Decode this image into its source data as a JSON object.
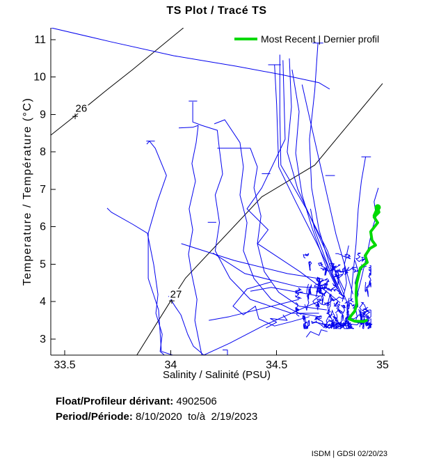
{
  "footer": {
    "float_label": "Float/Profileur dérivant:",
    "float_value": " 4902506",
    "period_label": "Period/Période:",
    "period_value": " 8/10/2020  to/à  2/19/2023",
    "credit": "ISDM | GDSI 02/20/23"
  },
  "chart_data": {
    "type": "line",
    "title": "TS Plot / Tracé TS",
    "xlabel": "Salinity / Salinité (PSU)",
    "ylabel": "Temperature / Température (°C)",
    "xlim": [
      33.434,
      35.0
    ],
    "ylim": [
      2.572,
      11.316
    ],
    "grid": false,
    "xticks": [
      {
        "v": 33.5,
        "label": "33.5"
      },
      {
        "v": 34.0,
        "label": "34"
      },
      {
        "v": 34.5,
        "label": "34.5"
      },
      {
        "v": 35.0,
        "label": "35"
      }
    ],
    "yticks": [
      {
        "v": 3,
        "label": "3"
      },
      {
        "v": 4,
        "label": "4"
      },
      {
        "v": 5,
        "label": "5"
      },
      {
        "v": 6,
        "label": "6"
      },
      {
        "v": 7,
        "label": "7"
      },
      {
        "v": 8,
        "label": "8"
      },
      {
        "v": 9,
        "label": "9"
      },
      {
        "v": 10,
        "label": "10"
      },
      {
        "v": 11,
        "label": "11"
      }
    ],
    "legend": {
      "label": "Most Recent | Dernier profil",
      "color": "#00D900",
      "position": "top-right"
    },
    "axis_color": "#000000",
    "density_contours": [
      {
        "label": "26",
        "color": "#000000",
        "marker": [
          33.549,
          8.95
        ],
        "label_pos": [
          33.578,
          9.17
        ],
        "points": [
          [
            33.434,
            8.45
          ],
          [
            33.55,
            8.97
          ],
          [
            33.69,
            9.62
          ],
          [
            33.82,
            10.2
          ],
          [
            34.06,
            11.316
          ]
        ]
      },
      {
        "label": "27",
        "color": "#000000",
        "marker": [
          34.005,
          4.02
        ],
        "label_pos": [
          34.025,
          4.2
        ],
        "points": [
          [
            33.84,
            2.572
          ],
          [
            34.0,
            4.02
          ],
          [
            34.07,
            4.63
          ],
          [
            34.43,
            6.8
          ],
          [
            34.68,
            7.65
          ],
          [
            34.79,
            8.4
          ],
          [
            35.0,
            9.83
          ]
        ]
      }
    ],
    "profiles": {
      "color": "#0000EE",
      "series": [
        [
          [
            33.434,
            11.32
          ],
          [
            33.72,
            10.94
          ],
          [
            34.015,
            10.57
          ],
          [
            34.31,
            10.29
          ],
          [
            34.52,
            10.07
          ],
          [
            34.7,
            9.85
          ],
          [
            34.75,
            9.68
          ]
        ],
        [
          [
            34.515,
            10.6
          ],
          [
            34.515,
            9.0
          ],
          [
            34.52,
            7.65
          ],
          [
            34.64,
            6.48
          ],
          [
            34.74,
            5.36
          ],
          [
            34.8,
            4.43
          ],
          [
            34.84,
            3.87
          ]
        ],
        [
          [
            34.49,
            10.33
          ],
          [
            34.5,
            9.27
          ],
          [
            34.51,
            7.6
          ],
          [
            34.59,
            6.67
          ],
          [
            34.69,
            5.55
          ],
          [
            34.77,
            4.62
          ],
          [
            34.82,
            4.06
          ]
        ],
        [
          [
            34.53,
            10.45
          ],
          [
            34.54,
            8.34
          ],
          [
            34.43,
            7.04
          ],
          [
            34.36,
            6.48
          ],
          [
            34.46,
            5.92
          ],
          [
            34.41,
            5.55
          ],
          [
            34.61,
            4.8
          ],
          [
            34.74,
            4.25
          ],
          [
            34.8,
            3.97
          ]
        ],
        [
          [
            34.695,
            10.91
          ],
          [
            34.68,
            9.64
          ],
          [
            34.655,
            8.34
          ],
          [
            34.665,
            7.04
          ],
          [
            34.7,
            5.92
          ],
          [
            34.76,
            4.8
          ],
          [
            34.81,
            4.15
          ]
        ],
        [
          [
            34.92,
            7.87
          ],
          [
            34.9,
            7.22
          ],
          [
            34.885,
            6.48
          ],
          [
            34.875,
            5.55
          ],
          [
            34.86,
            4.71
          ],
          [
            34.85,
            4.06
          ]
        ],
        [
          [
            34.98,
            7.04
          ],
          [
            34.96,
            6.67
          ],
          [
            34.97,
            6.29
          ],
          [
            34.95,
            5.92
          ],
          [
            34.93,
            5.36
          ],
          [
            34.9,
            4.62
          ],
          [
            34.875,
            4.06
          ]
        ],
        [
          [
            33.7,
            6.5
          ],
          [
            33.72,
            6.39
          ],
          [
            33.82,
            6.07
          ],
          [
            33.89,
            5.83
          ],
          [
            33.92,
            4.99
          ],
          [
            33.94,
            4.19
          ],
          [
            33.93,
            3.69
          ],
          [
            33.96,
            3.13
          ],
          [
            33.95,
            2.67
          ],
          [
            33.97,
            2.572
          ]
        ],
        [
          [
            33.887,
            8.21
          ],
          [
            33.9,
            8.29
          ],
          [
            33.927,
            8.1
          ],
          [
            33.98,
            7.37
          ],
          [
            33.937,
            6.67
          ],
          [
            33.894,
            5.83
          ],
          [
            33.894,
            4.62
          ],
          [
            33.943,
            3.78
          ],
          [
            33.956,
            2.67
          ],
          [
            34.01,
            2.572
          ]
        ],
        [
          [
            34.038,
            8.64
          ],
          [
            34.104,
            8.66
          ],
          [
            34.13,
            8.71
          ],
          [
            34.12,
            8.25
          ],
          [
            34.1,
            7.69
          ],
          [
            34.117,
            7.22
          ],
          [
            34.087,
            6.48
          ],
          [
            34.104,
            5.92
          ],
          [
            34.084,
            5.27
          ],
          [
            34.1,
            4.71
          ],
          [
            34.124,
            4.06
          ],
          [
            34.114,
            3.5
          ],
          [
            34.137,
            2.85
          ],
          [
            34.147,
            2.572
          ]
        ],
        [
          [
            34.104,
            9.34
          ],
          [
            34.104,
            8.8
          ],
          [
            34.147,
            8.71
          ],
          [
            34.22,
            8.58
          ],
          [
            34.23,
            8.06
          ],
          [
            34.245,
            7.41
          ],
          [
            34.21,
            6.85
          ],
          [
            34.23,
            6.11
          ],
          [
            34.21,
            5.36
          ],
          [
            34.28,
            4.62
          ],
          [
            34.376,
            4.06
          ],
          [
            34.57,
            3.69
          ],
          [
            34.7,
            3.69
          ]
        ],
        [
          [
            34.22,
            8.1
          ],
          [
            34.376,
            8.1
          ],
          [
            34.409,
            7.6
          ],
          [
            34.393,
            7.04
          ],
          [
            34.426,
            6.29
          ],
          [
            34.409,
            5.55
          ],
          [
            34.442,
            4.8
          ],
          [
            34.51,
            4.25
          ],
          [
            34.606,
            3.88
          ],
          [
            34.737,
            3.78
          ]
        ],
        [
          [
            34.206,
            8.75
          ],
          [
            34.255,
            8.86
          ],
          [
            34.327,
            8.25
          ],
          [
            34.343,
            7.6
          ],
          [
            34.327,
            6.85
          ],
          [
            34.36,
            6.11
          ],
          [
            34.343,
            5.36
          ],
          [
            34.393,
            4.62
          ],
          [
            34.475,
            4.06
          ],
          [
            34.606,
            3.69
          ],
          [
            34.7,
            3.6
          ]
        ],
        [
          [
            33.99,
            4.15
          ],
          [
            34.02,
            3.88
          ],
          [
            34.048,
            3.65
          ],
          [
            34.08,
            3.13
          ],
          [
            34.107,
            2.81
          ],
          [
            34.137,
            2.67
          ],
          [
            34.156,
            2.572
          ],
          [
            34.278,
            2.89
          ],
          [
            34.442,
            3.37
          ],
          [
            34.606,
            3.78
          ],
          [
            34.72,
            4.06
          ]
        ],
        [
          [
            34.475,
            4.53
          ],
          [
            34.36,
            4.34
          ],
          [
            34.294,
            3.88
          ],
          [
            34.343,
            3.65
          ],
          [
            34.4,
            3.88
          ],
          [
            34.416,
            3.54
          ],
          [
            34.49,
            3.35
          ],
          [
            34.573,
            3.47
          ],
          [
            34.655,
            3.6
          ]
        ],
        [
          [
            34.606,
            4.06
          ],
          [
            34.278,
            3.6
          ],
          [
            34.18,
            3.5
          ]
        ],
        [
          [
            34.7,
            4.15
          ],
          [
            34.475,
            4.38
          ],
          [
            34.376,
            4.28
          ]
        ],
        [
          [
            34.573,
            10.2
          ],
          [
            34.606,
            9.08
          ],
          [
            34.59,
            7.97
          ],
          [
            34.62,
            6.85
          ],
          [
            34.67,
            5.92
          ],
          [
            34.73,
            4.99
          ],
          [
            34.786,
            4.34
          ]
        ],
        [
          [
            34.56,
            10.5
          ],
          [
            34.57,
            9.2
          ],
          [
            34.55,
            8.0
          ],
          [
            34.6,
            7.0
          ],
          [
            34.68,
            6.0
          ],
          [
            34.76,
            5.0
          ],
          [
            34.82,
            4.3
          ]
        ],
        [
          [
            34.62,
            9.8
          ],
          [
            34.66,
            8.8
          ],
          [
            34.7,
            7.8
          ],
          [
            34.74,
            6.8
          ],
          [
            34.78,
            5.8
          ],
          [
            34.83,
            4.8
          ],
          [
            34.86,
            4.2
          ]
        ],
        [
          [
            34.84,
            5.5
          ],
          [
            34.82,
            5.0
          ],
          [
            34.83,
            4.5
          ],
          [
            34.81,
            4.0
          ]
        ],
        [
          [
            34.66,
            6.48
          ],
          [
            34.68,
            5.9
          ],
          [
            34.72,
            5.3
          ],
          [
            34.76,
            4.7
          ],
          [
            34.8,
            4.2
          ]
        ],
        [
          [
            34.2,
            5.3
          ],
          [
            34.35,
            4.75
          ],
          [
            34.6,
            4.4
          ],
          [
            34.75,
            4.35
          ]
        ],
        [
          [
            34.05,
            5.55
          ],
          [
            34.3,
            5.1
          ],
          [
            34.55,
            4.75
          ],
          [
            34.72,
            4.6
          ]
        ],
        [
          [
            34.64,
            3.05
          ],
          [
            34.66,
            3.2
          ],
          [
            34.7,
            3.1
          ],
          [
            34.71,
            3.25
          ],
          [
            34.74,
            3.2
          ]
        ],
        [
          [
            34.245,
            2.71
          ],
          [
            34.268,
            2.71
          ],
          [
            34.268,
            2.572
          ]
        ],
        [
          [
            34.92,
            3.45
          ],
          [
            34.95,
            3.4
          ],
          [
            34.93,
            3.3
          ]
        ],
        [
          [
            34.45,
            3.3
          ],
          [
            34.5,
            3.45
          ],
          [
            34.47,
            3.55
          ],
          [
            34.55,
            3.5
          ],
          [
            34.53,
            3.65
          ]
        ],
        [
          [
            34.87,
            5.1
          ],
          [
            34.885,
            4.8
          ],
          [
            34.87,
            4.5
          ],
          [
            34.885,
            4.2
          ],
          [
            34.87,
            3.9
          ],
          [
            34.88,
            3.6
          ],
          [
            34.87,
            3.45
          ],
          [
            34.9,
            3.42
          ]
        ],
        [
          [
            34.68,
            3.45
          ],
          [
            34.75,
            3.38
          ],
          [
            34.82,
            3.42
          ],
          [
            34.88,
            3.38
          ],
          [
            34.9,
            3.5
          ]
        ]
      ]
    },
    "error_caps": [
      [
        34.46,
        34.52,
        10.33
      ],
      [
        34.67,
        34.72,
        10.91
      ],
      [
        34.085,
        34.125,
        9.36
      ],
      [
        34.9,
        34.945,
        7.87
      ],
      [
        34.73,
        34.775,
        7.37
      ],
      [
        33.885,
        33.925,
        8.29
      ],
      [
        34.175,
        34.215,
        6.12
      ],
      [
        34.43,
        34.47,
        7.42
      ]
    ],
    "cluster": {
      "note": "dense overlapping profile scribble near bottom-right",
      "color": "#0000EE",
      "seed": 42,
      "strokes": 70,
      "s_range": [
        34.59,
        34.945
      ],
      "t_range": [
        3.28,
        5.3
      ]
    },
    "most_recent": {
      "name": "most-recent-profile",
      "color": "#00D900",
      "width": 4,
      "points": [
        [
          34.96,
          6.3
        ],
        [
          34.977,
          6.52
        ],
        [
          34.983,
          6.39
        ],
        [
          34.96,
          6.26
        ],
        [
          34.977,
          6.11
        ],
        [
          34.944,
          5.87
        ],
        [
          34.95,
          5.64
        ],
        [
          34.967,
          5.51
        ],
        [
          34.94,
          5.42
        ],
        [
          34.918,
          5.23
        ],
        [
          34.928,
          5.05
        ],
        [
          34.895,
          4.9
        ],
        [
          34.878,
          4.49
        ],
        [
          34.875,
          4.19
        ],
        [
          34.878,
          3.93
        ],
        [
          34.868,
          3.74
        ],
        [
          34.852,
          3.63
        ],
        [
          34.842,
          3.54
        ],
        [
          34.868,
          3.48
        ],
        [
          34.91,
          3.47
        ],
        [
          34.924,
          3.5
        ]
      ]
    }
  }
}
